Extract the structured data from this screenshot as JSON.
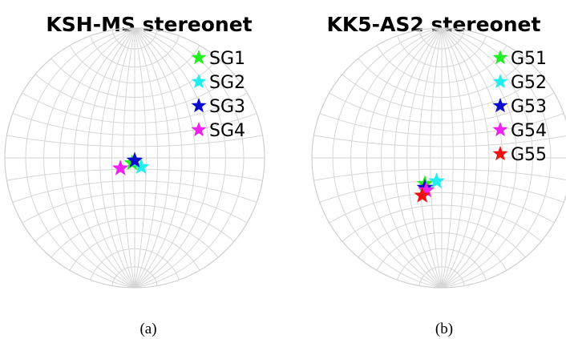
{
  "chart_data": [
    {
      "type": "scatter",
      "projection": "stereonet",
      "title": "KSH-MS stereonet",
      "caption": "(a)",
      "grid": true,
      "legend_position": "top-right",
      "series": [
        {
          "name": "SG1",
          "color": "#22ee22",
          "x": -0.02,
          "y": -0.04
        },
        {
          "name": "SG2",
          "color": "#22eeee",
          "x": 0.05,
          "y": -0.07
        },
        {
          "name": "SG3",
          "color": "#0a0acc",
          "x": 0.0,
          "y": -0.02
        },
        {
          "name": "SG4",
          "color": "#ee22ee",
          "x": -0.11,
          "y": -0.08
        }
      ]
    },
    {
      "type": "scatter",
      "projection": "stereonet",
      "title": "KK5-AS2 stereonet",
      "caption": "(b)",
      "grid": true,
      "legend_position": "top-right",
      "series": [
        {
          "name": "G51",
          "color": "#22ee22",
          "x": -0.13,
          "y": -0.2
        },
        {
          "name": "G52",
          "color": "#22eeee",
          "x": -0.04,
          "y": -0.18
        },
        {
          "name": "G53",
          "color": "#0a0acc",
          "x": -0.13,
          "y": -0.23
        },
        {
          "name": "G54",
          "color": "#ee22ee",
          "x": -0.12,
          "y": -0.25
        },
        {
          "name": "G55",
          "color": "#ee1111",
          "x": -0.15,
          "y": -0.29
        }
      ]
    }
  ]
}
